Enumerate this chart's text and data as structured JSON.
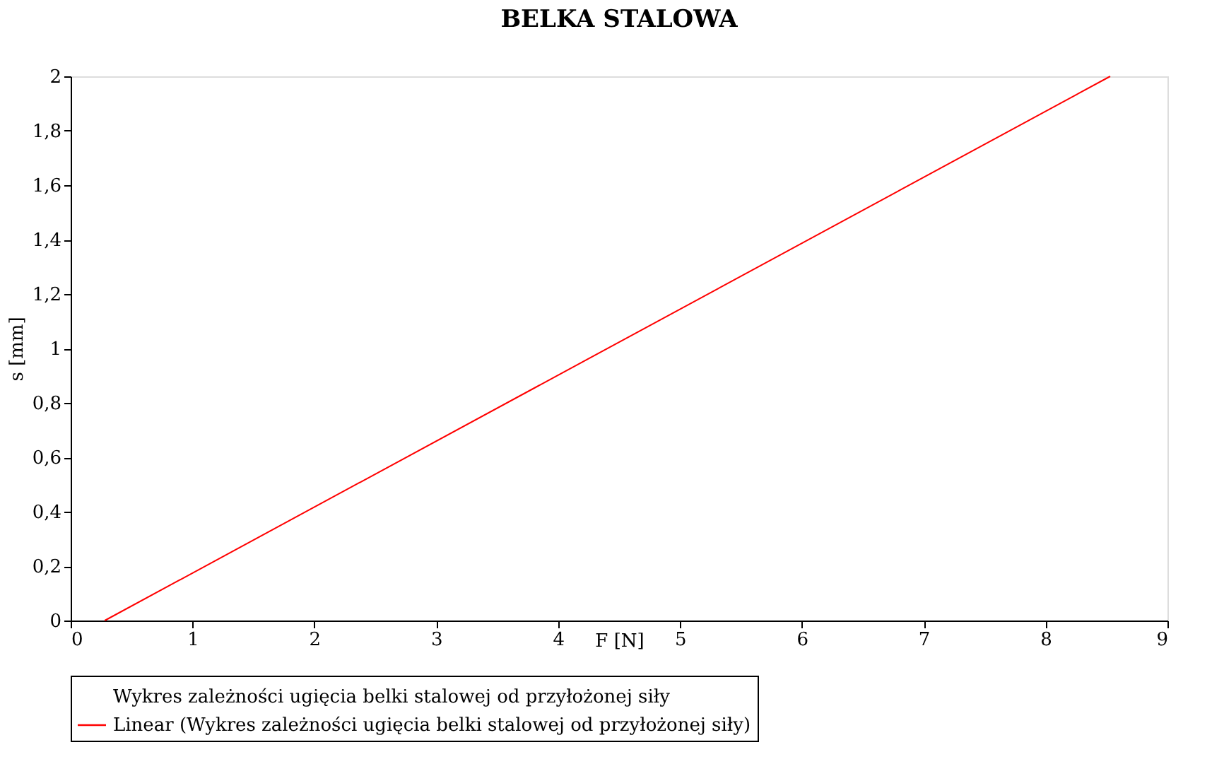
{
  "chart_data": {
    "type": "line",
    "title": "BELKA STALOWA",
    "xlabel": "F [N]",
    "ylabel": "s [mm]",
    "series": [
      {
        "name": "Wykres zależności ugięcia belki stalowej od przyłożonej siły"
      },
      {
        "name": "Linear (Wykres zależności ugięcia belki stalowej od przyłożonej siły)",
        "color": "#ff0000",
        "x": [
          0.28,
          8.53
        ],
        "values": [
          0,
          2
        ]
      }
    ],
    "xlim": [
      0,
      9
    ],
    "xticks": [
      0,
      1,
      2,
      3,
      4,
      5,
      6,
      7,
      8,
      9
    ],
    "ylim": [
      0,
      2
    ],
    "yticks": [
      0,
      {
        "value": 0.2,
        "label": "0,2"
      },
      {
        "value": 0.4,
        "label": "0,4"
      },
      {
        "value": 0.6,
        "label": "0,6"
      },
      {
        "value": 0.8,
        "label": "0,8"
      },
      1,
      {
        "value": 1.2,
        "label": "1,2"
      },
      {
        "value": 1.4,
        "label": "1,4"
      },
      {
        "value": 1.6,
        "label": "1,6"
      },
      {
        "value": 1.8,
        "label": "1,8"
      },
      2
    ],
    "grid": false,
    "legend": "bottom",
    "line_style": "solid"
  }
}
